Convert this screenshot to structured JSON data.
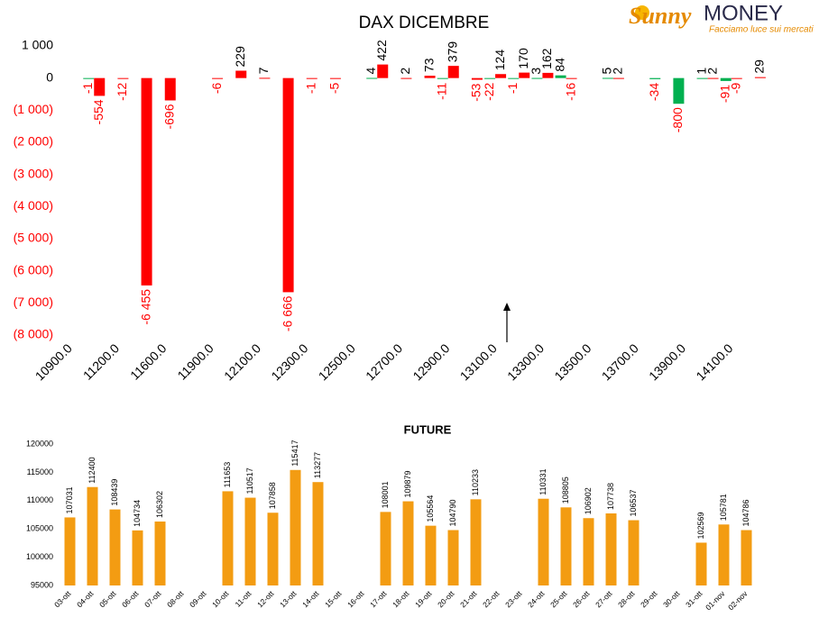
{
  "logo": {
    "name_left": "Sunny",
    "name_right": "MONEY",
    "tagline": "Facciamo luce sui mercati"
  },
  "chart_data": [
    {
      "type": "bar",
      "title": "DAX DICEMBRE",
      "categories": [
        "10900.0",
        null,
        "11200.0",
        null,
        "11600.0",
        null,
        "11900.0",
        null,
        "12100.0",
        null,
        "12300.0",
        null,
        "12500.0",
        null,
        "12700.0",
        null,
        "12900.0",
        null,
        "13100.0",
        null,
        "13300.0",
        null,
        "13500.0",
        null,
        "13700.0",
        null,
        "13900.0",
        null,
        "14100.0",
        null
      ],
      "series": [
        {
          "color": "#00b050",
          "values": [
            null,
            -1,
            null,
            null,
            null,
            null,
            null,
            null,
            null,
            null,
            null,
            null,
            null,
            4,
            null,
            null,
            -11,
            null,
            -22,
            -1,
            3,
            84,
            null,
            5,
            null,
            -34,
            -800,
            1,
            -91,
            null
          ]
        },
        {
          "color": "#ff0000",
          "values": [
            null,
            -554,
            -12,
            -6455,
            -696,
            null,
            -6,
            229,
            7,
            -6666,
            -1,
            -5,
            null,
            422,
            2,
            73,
            379,
            -53,
            124,
            170,
            162,
            -16,
            null,
            2,
            null,
            null,
            null,
            2,
            -9,
            29
          ],
          "value_labels": [
            null,
            "-554",
            "-12",
            "-6 455",
            "-696",
            null,
            "-6",
            "229",
            "7",
            "-6 666",
            "-1",
            "-5",
            null,
            "422",
            "2",
            "73",
            "379",
            "-53",
            "124",
            "170",
            "162",
            "-16",
            null,
            "2",
            null,
            null,
            null,
            "2",
            "-9",
            "29"
          ]
        }
      ],
      "ylim": [
        -8000,
        1000
      ],
      "yticks": [
        {
          "value": 1000,
          "label": "1 000"
        },
        0,
        {
          "value": -1000,
          "label": "(1 000)"
        },
        {
          "value": -2000,
          "label": "(2 000)"
        },
        {
          "value": -3000,
          "label": "(3 000)"
        },
        {
          "value": -4000,
          "label": "(4 000)"
        },
        {
          "value": -5000,
          "label": "(5 000)"
        },
        {
          "value": -6000,
          "label": "(6 000)"
        },
        {
          "value": -7000,
          "label": "(7 000)"
        },
        {
          "value": -8000,
          "label": "(8 000)"
        }
      ]
    },
    {
      "type": "bar",
      "title": "FUTURE",
      "color": "#f39c12",
      "categories": [
        "03-ott",
        "04-ott",
        "05-ott",
        "06-ott",
        "07-ott",
        "08-ott",
        "09-ott",
        "10-ott",
        "11-ott",
        "12-ott",
        "13-ott",
        "14-ott",
        "15-ott",
        "16-ott",
        "17-ott",
        "18-ott",
        "19-ott",
        "20-ott",
        "21-ott",
        "22-ott",
        "23-ott",
        "24-ott",
        "25-ott",
        "26-ott",
        "27-ott",
        "28-ott",
        "29-ott",
        "30-ott",
        "31-ott",
        "01-nov",
        "02-nov"
      ],
      "values": [
        107031,
        112400,
        108439,
        104734,
        106302,
        null,
        null,
        111653,
        110517,
        107858,
        115417,
        113277,
        null,
        null,
        108001,
        109879,
        105564,
        104790,
        110233,
        null,
        null,
        110331,
        108805,
        106902,
        107738,
        106537,
        null,
        null,
        102569,
        105781,
        104786
      ],
      "ylim": [
        95000,
        120000
      ],
      "yticks": [
        95000,
        100000,
        105000,
        110000,
        115000,
        120000
      ]
    }
  ]
}
